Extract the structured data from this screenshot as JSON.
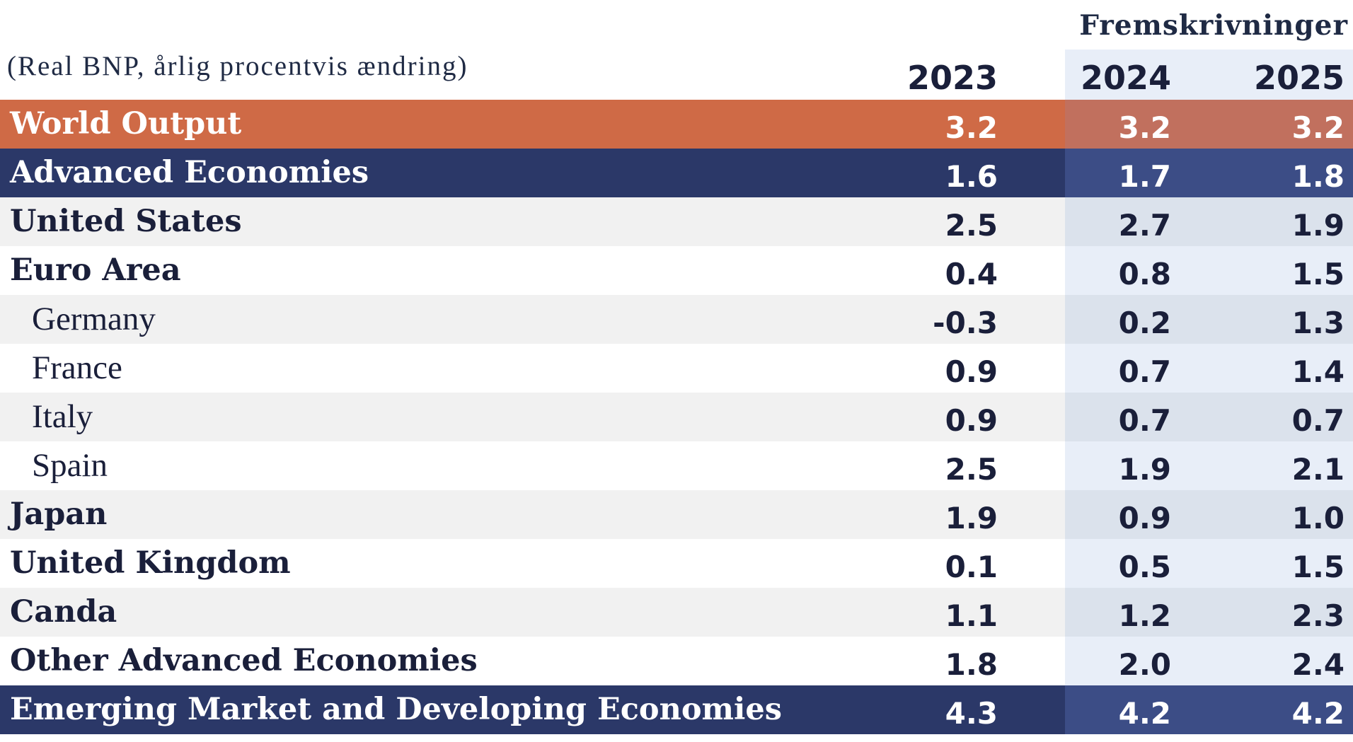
{
  "header": {
    "projections_label": "Fremskrivninger",
    "unit_note": "(Real BNP, årlig procentvis ændring)",
    "years": [
      "2023",
      "2024",
      "2025"
    ]
  },
  "rows": [
    {
      "label": "World Output",
      "v2023": "3.2",
      "v2024": "3.2",
      "v2025": "3.2"
    },
    {
      "label": "Advanced Economies",
      "v2023": "1.6",
      "v2024": "1.7",
      "v2025": "1.8"
    },
    {
      "label": "United States",
      "v2023": "2.5",
      "v2024": "2.7",
      "v2025": "1.9"
    },
    {
      "label": "Euro Area",
      "v2023": "0.4",
      "v2024": "0.8",
      "v2025": "1.5"
    },
    {
      "label": "Germany",
      "v2023": "-0.3",
      "v2024": "0.2",
      "v2025": "1.3"
    },
    {
      "label": "France",
      "v2023": "0.9",
      "v2024": "0.7",
      "v2025": "1.4"
    },
    {
      "label": "Italy",
      "v2023": "0.9",
      "v2024": "0.7",
      "v2025": "0.7"
    },
    {
      "label": "Spain",
      "v2023": "2.5",
      "v2024": "1.9",
      "v2025": "2.1"
    },
    {
      "label": "Japan",
      "v2023": "1.9",
      "v2024": "0.9",
      "v2025": "1.0"
    },
    {
      "label": "United Kingdom",
      "v2023": "0.1",
      "v2024": "0.5",
      "v2025": "1.5"
    },
    {
      "label": "Canda",
      "v2023": "1.1",
      "v2024": "1.2",
      "v2025": "2.3"
    },
    {
      "label": "Other Advanced Economies",
      "v2023": "1.8",
      "v2024": "2.0",
      "v2025": "2.4"
    },
    {
      "label": "Emerging Market and Developing Economies",
      "v2023": "4.3",
      "v2024": "4.2",
      "v2025": "4.2"
    }
  ],
  "colors": {
    "world_output": "#cf6a46",
    "navy": "#2b3868",
    "projection_band": "#e8eef8",
    "zebra_grey": "#f1f1f1"
  }
}
